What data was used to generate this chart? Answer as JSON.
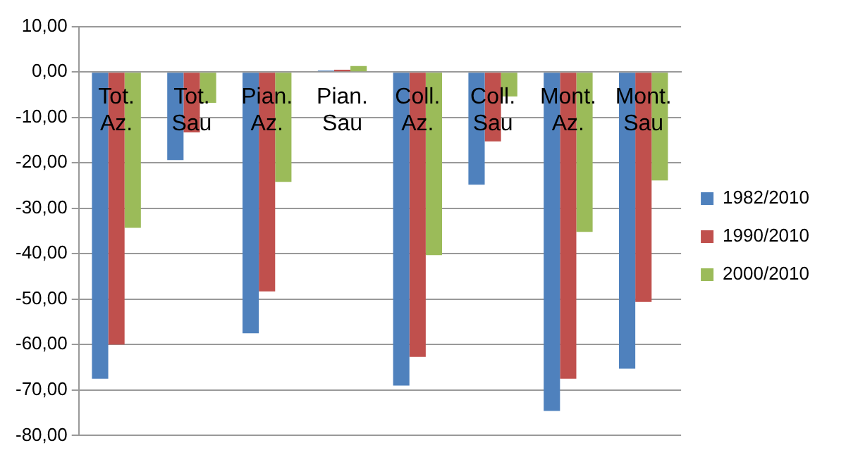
{
  "chart_data": {
    "type": "bar",
    "categories": [
      "Tot.\nAz.",
      "Tot.\nSau",
      "Pian.\nAz.",
      "Pian.\nSau",
      "Coll.\nAz.",
      "Coll.\nSau",
      "Mont.\nAz.",
      "Mont.\nSau"
    ],
    "series": [
      {
        "name": "1982/2010",
        "color": "#4f81bd",
        "values": [
          -67.5,
          -19.4,
          -57.5,
          0.3,
          -69,
          -24.8,
          -74.6,
          -65.3
        ]
      },
      {
        "name": "1990/2010",
        "color": "#c0504d",
        "values": [
          -60,
          -13.3,
          -48.3,
          0.5,
          -62.7,
          -15.3,
          -67.5,
          -50.6
        ]
      },
      {
        "name": "2000/2010",
        "color": "#9bbb59",
        "values": [
          -34.3,
          -6.8,
          -24.2,
          1.3,
          -40.3,
          -5.4,
          -35.2,
          -23.9
        ]
      }
    ],
    "ylim": [
      -80,
      10
    ],
    "yticks": [
      {
        "value": 10,
        "label": "10,00"
      },
      {
        "value": 0,
        "label": "0,00"
      },
      {
        "value": -10,
        "label": "-10,00"
      },
      {
        "value": -20,
        "label": "-20,00"
      },
      {
        "value": -30,
        "label": "-30,00"
      },
      {
        "value": -40,
        "label": "-40,00"
      },
      {
        "value": -50,
        "label": "-50,00"
      },
      {
        "value": -60,
        "label": "-60,00"
      },
      {
        "value": -70,
        "label": "-70,00"
      },
      {
        "value": -80,
        "label": "-80,00"
      }
    ],
    "grid": "y",
    "legend": "right"
  }
}
